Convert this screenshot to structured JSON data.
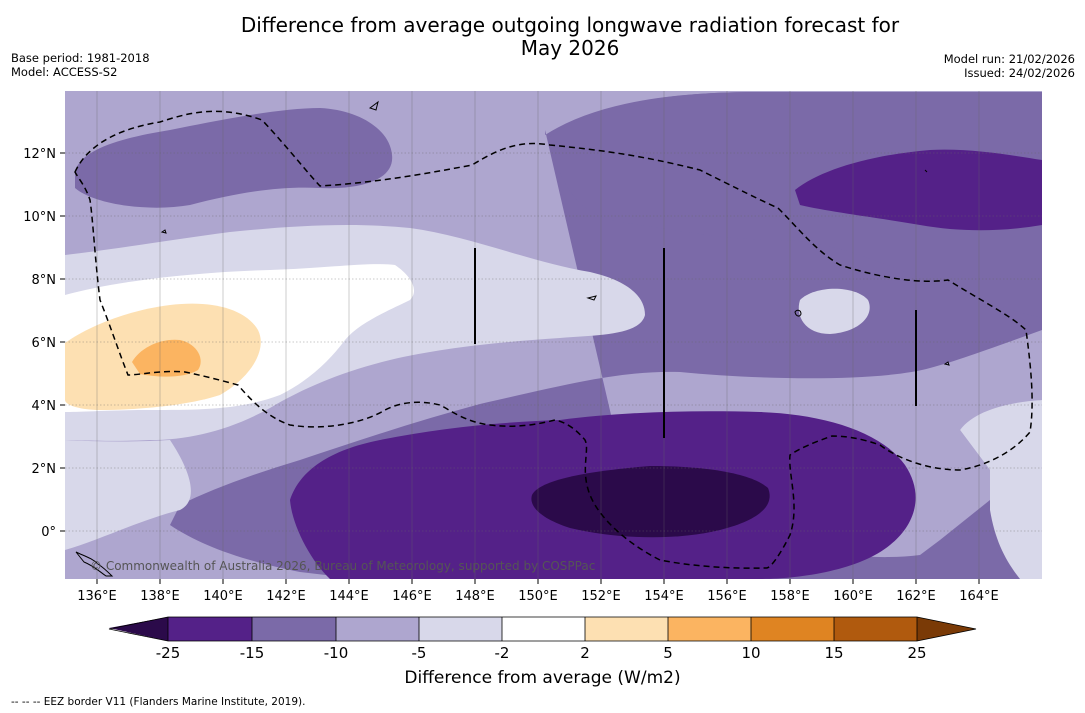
{
  "title_line1": "Difference from average outgoing longwave radiation forecast for",
  "title_line2": "May 2026",
  "meta": {
    "base_period": "Base period: 1981-2018",
    "model": "Model: ACCESS-S2",
    "model_run": "Model run: 21/02/2026",
    "issued": "Issued: 24/02/2026"
  },
  "copyright": "© Commonwealth of Australia 2026, Bureau of Meteorology, supported by COSPPac",
  "x_ticks": [
    "136°E",
    "138°E",
    "140°E",
    "142°E",
    "144°E",
    "146°E",
    "148°E",
    "150°E",
    "152°E",
    "154°E",
    "156°E",
    "158°E",
    "160°E",
    "162°E",
    "164°E"
  ],
  "y_ticks": [
    "12°N",
    "10°N",
    "8°N",
    "6°N",
    "4°N",
    "2°N",
    "0°"
  ],
  "colorbar": {
    "ticks": [
      "-25",
      "-15",
      "-10",
      "-5",
      "-2",
      "2",
      "5",
      "10",
      "15",
      "25"
    ],
    "label": "Difference from average (W/m2)"
  },
  "palette": {
    "lt_minus25": "#2b0a4a",
    "m25_m15": "#542188",
    "m15_m10": "#7b6aa8",
    "m10_m5": "#aea6cf",
    "m5_m2": "#d8d8ea",
    "m2_2": "#ffffff",
    "p2_p5": "#fde0b2",
    "p5_p10": "#fbb461",
    "p10_p15": "#df8422",
    "p15_p25": "#b05a0e",
    "gt_25": "#7a3a06"
  },
  "footer": "--  --  -- EEZ border V11 (Flanders Marine Institute, 2019)."
}
